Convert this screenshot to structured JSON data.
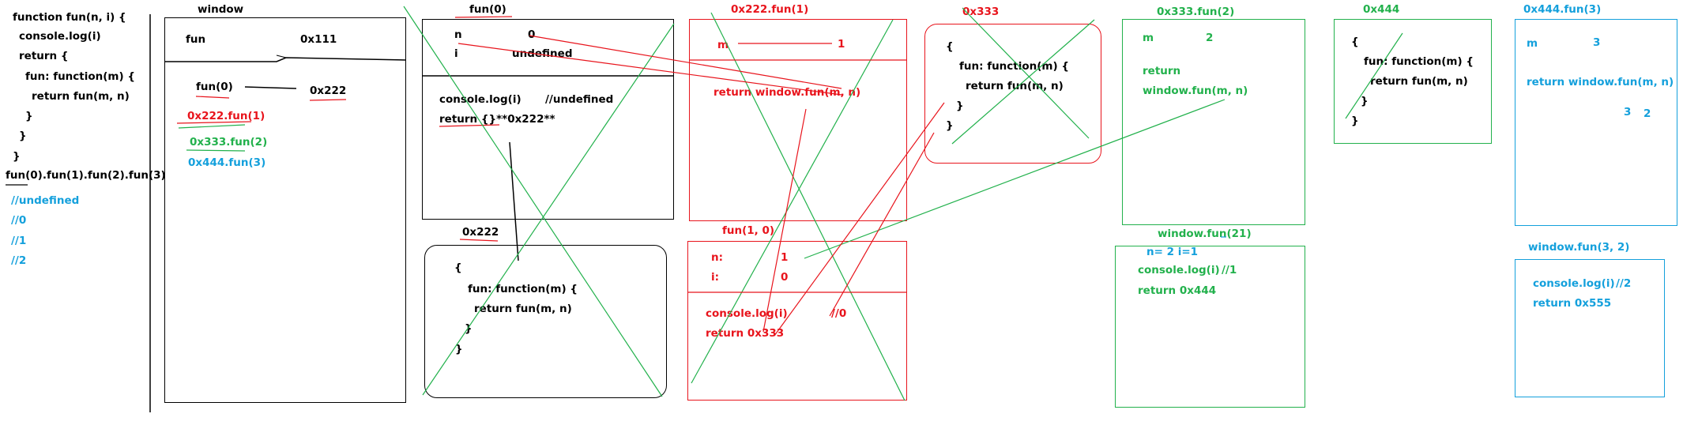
{
  "colors": {
    "black": "#000000",
    "red": "#e8141c",
    "green": "#22b14c",
    "blue": "#14a0dc"
  },
  "code": {
    "lines": [
      "function fun(n, i) {",
      "console.log(i)",
      "return {",
      "fun: function(m) {",
      "return fun(m, n)",
      "}",
      "}",
      "}"
    ],
    "call": "fun(0).fun(1).fun(2).fun(3)",
    "outputs": [
      "//undefined",
      "//0",
      "//1",
      "//2"
    ]
  },
  "window_panel": {
    "title": "window",
    "fun_label": "fun",
    "fun_addr": "0x111",
    "call0": "fun(0)",
    "addr0": "0x222",
    "calls": [
      "0x222.fun(1)",
      "0x333.fun(2)",
      "0x444.fun(3)"
    ]
  },
  "fun0_frame": {
    "title": "fun(0)",
    "n_label": "n",
    "n_value": "0",
    "i_label": "i",
    "i_value": "undefined",
    "log": "console.log(i)",
    "log_comment": "//undefined",
    "ret": "return {}**0x222**"
  },
  "obj_222": {
    "title": "0x222",
    "lines": [
      "{",
      "fun: function(m) {",
      "return fun(m, n)",
      "}",
      "}"
    ]
  },
  "frame_222_fun1": {
    "title": "0x222.fun(1)",
    "m_label": "m",
    "m_value": "1",
    "ret": "return window.fun(m, n)"
  },
  "frame_fun_1_0": {
    "title": "fun(1, 0)",
    "n_label": "n:",
    "n_value": "1",
    "i_label": "i:",
    "i_value": "0",
    "log": "console.log(i)",
    "log_comment": "//0",
    "ret": "return 0x333"
  },
  "obj_333": {
    "title": "0x333",
    "lines": [
      "{",
      "fun: function(m) {",
      "return fun(m, n)",
      "}",
      "}"
    ]
  },
  "frame_333_fun2": {
    "title": "0x333.fun(2)",
    "m_label": "m",
    "m_value": "2",
    "ret1": "return",
    "ret2": "window.fun(m, n)"
  },
  "frame_window_fun21": {
    "title": "window.fun(2",
    "title_tail": "1)",
    "vars": "n= 2 i=1",
    "log": "console.log(i)",
    "log_comment": "//1",
    "ret": "return 0x444"
  },
  "obj_444": {
    "title": "0x444",
    "lines": [
      "{",
      "fun: function(m) {",
      "return fun(m, n)",
      "}",
      "}"
    ]
  },
  "frame_444_fun3": {
    "title": "0x444.fun(3)",
    "m_label": "m",
    "m_value": "3",
    "ret": "return window.fun(m, n)",
    "extra_a": "3",
    "extra_b": "2"
  },
  "frame_window_fun32": {
    "title": "window.fun(3, 2)",
    "log": "console.log(i)",
    "log_comment": "//2",
    "ret": "return 0x555"
  }
}
